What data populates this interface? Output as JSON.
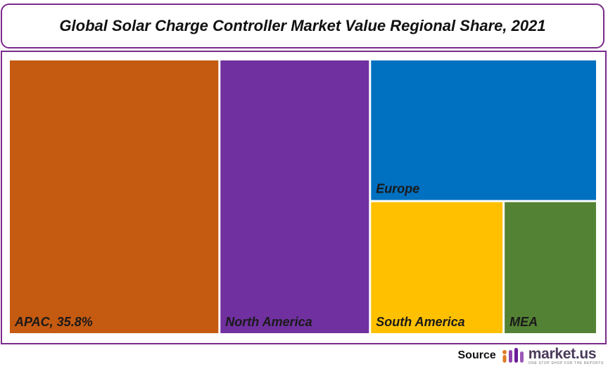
{
  "title": "Global Solar Charge Controller Market Value Regional Share, 2021",
  "chart_data": {
    "type": "treemap",
    "title": "Global Solar Charge Controller Market Value Regional Share, 2021",
    "items": [
      {
        "name": "APAC",
        "label": "APAC, 35.8%",
        "value": 35.8,
        "color": "#c55a11"
      },
      {
        "name": "North America",
        "label": "North America",
        "value": 25.6,
        "color": "#7030a0"
      },
      {
        "name": "Europe",
        "label": "Europe",
        "value": 19.9,
        "color": "#0070c0"
      },
      {
        "name": "South America",
        "label": "South America",
        "value": 11.0,
        "color": "#ffc000"
      },
      {
        "name": "MEA",
        "label": "MEA",
        "value": 7.7,
        "color": "#548235"
      }
    ]
  },
  "footer": {
    "source_label": "Source",
    "brand_name": "market.us",
    "brand_tagline": "ONE STOP SHOP FOR THE REPORTS"
  }
}
